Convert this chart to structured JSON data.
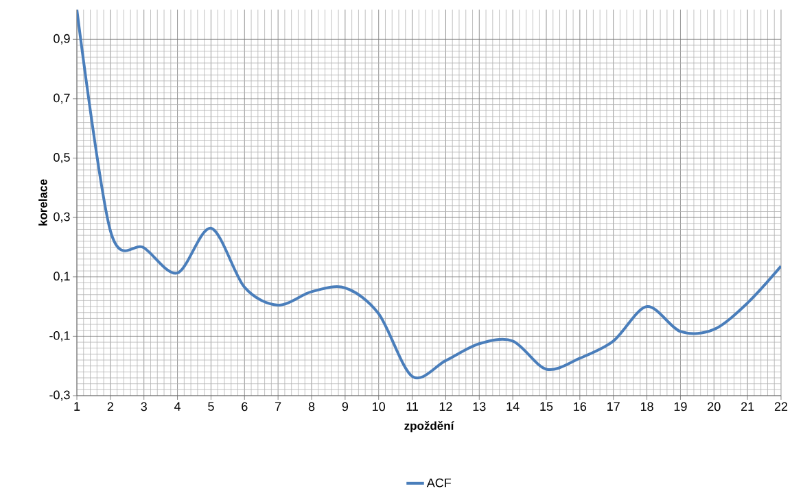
{
  "chart_data": {
    "type": "line",
    "xlabel": "zpoždění",
    "ylabel": "korelace",
    "categories": [
      "1",
      "2",
      "3",
      "4",
      "5",
      "6",
      "7",
      "8",
      "9",
      "10",
      "11",
      "12",
      "13",
      "14",
      "15",
      "16",
      "17",
      "18",
      "19",
      "20",
      "21",
      "22"
    ],
    "series": [
      {
        "name": "ACF",
        "color": "#4a7ebb",
        "values": [
          1.0,
          0.255,
          0.198,
          0.113,
          0.264,
          0.065,
          0.005,
          0.05,
          0.063,
          -0.024,
          -0.235,
          -0.182,
          -0.125,
          -0.116,
          -0.211,
          -0.174,
          -0.116,
          0.0,
          -0.084,
          -0.077,
          0.012,
          0.136
        ]
      }
    ],
    "ylim": [
      -0.3,
      1.0
    ],
    "yticks": [
      {
        "value": -0.3,
        "label": "-0,3"
      },
      {
        "value": -0.1,
        "label": "-0,1"
      },
      {
        "value": 0.1,
        "label": "0,1"
      },
      {
        "value": 0.3,
        "label": "0,3"
      },
      {
        "value": 0.5,
        "label": "0,5"
      },
      {
        "value": 0.7,
        "label": "0,7"
      },
      {
        "value": 0.9,
        "label": "0,9"
      }
    ],
    "grid": true,
    "legend": "bottom",
    "marker": "none",
    "line_style": "solid"
  }
}
